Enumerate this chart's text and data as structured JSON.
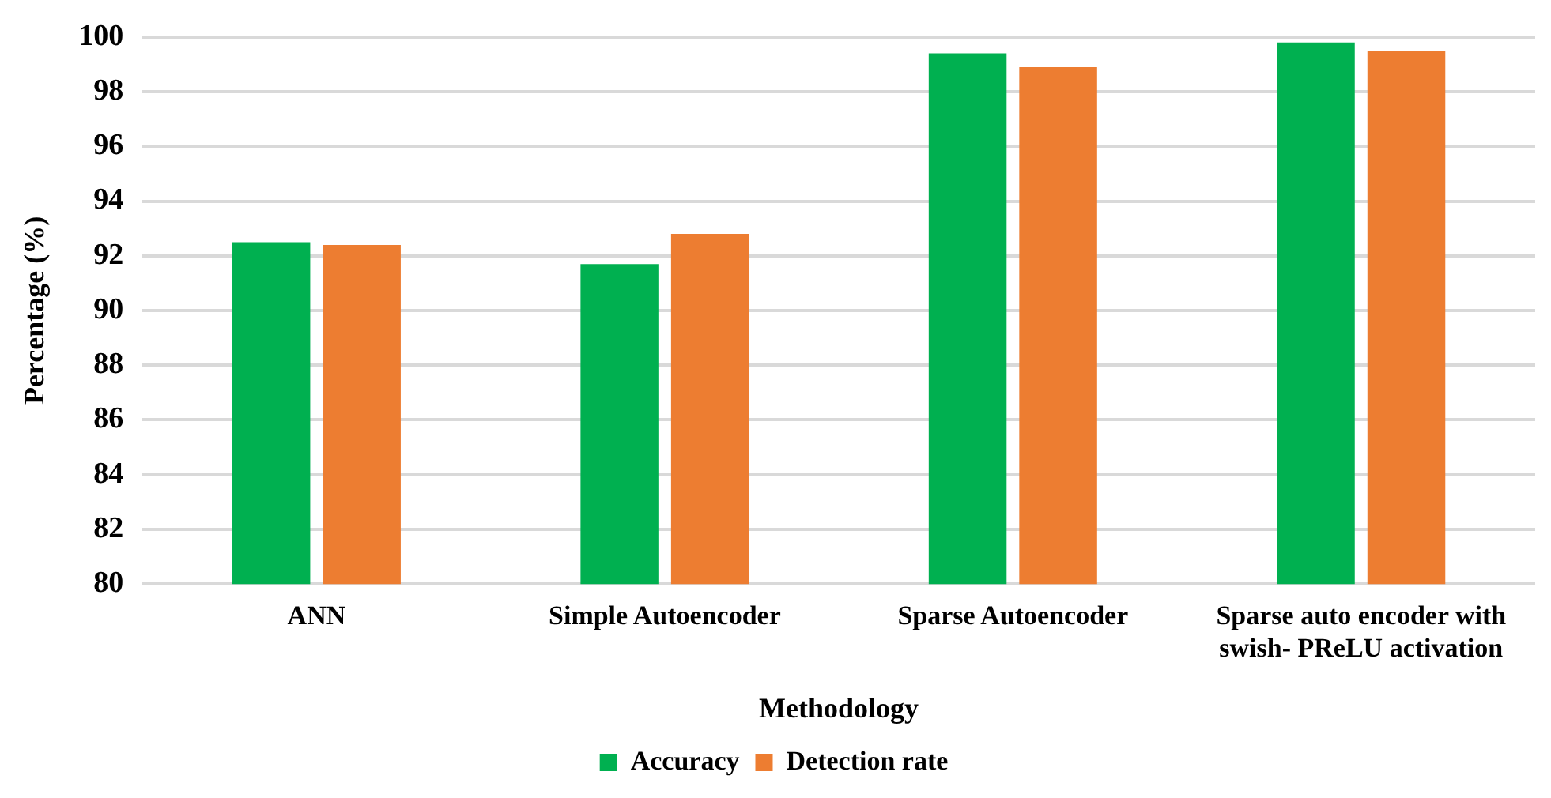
{
  "chart_data": {
    "type": "bar",
    "xlabel": "Methodology",
    "ylabel": "Percentage (%)",
    "categories": [
      "ANN",
      "Simple Autoencoder",
      "Sparse Autoencoder",
      "Sparse auto encoder with swish- PReLU activation"
    ],
    "series": [
      {
        "name": "Accuracy",
        "color": "#00b050",
        "values": [
          92.5,
          91.7,
          99.4,
          99.8
        ]
      },
      {
        "name": "Detection rate",
        "color": "#ed7d31",
        "values": [
          92.4,
          92.8,
          98.9,
          99.5
        ]
      }
    ],
    "ylim": [
      80,
      100
    ],
    "yticks": [
      80,
      82,
      84,
      86,
      88,
      90,
      92,
      94,
      96,
      98,
      100
    ],
    "grid": "y",
    "legend": "bottom"
  }
}
